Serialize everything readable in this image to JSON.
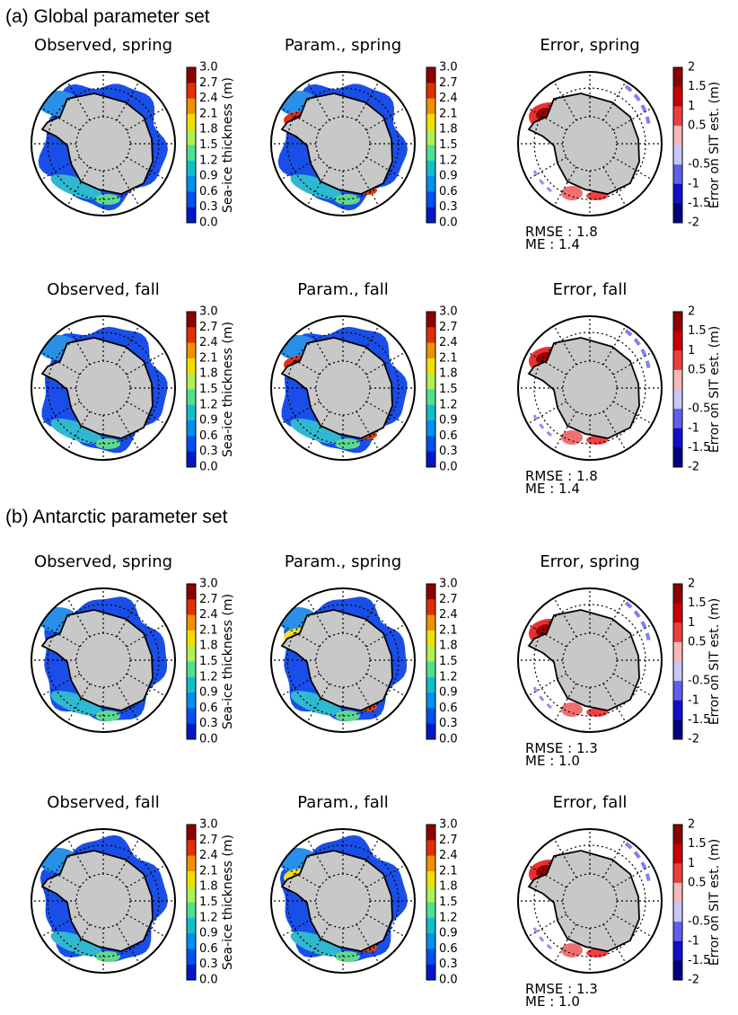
{
  "sections": [
    {
      "title": "(a) Global parameter set",
      "rows": [
        {
          "panels": [
            {
              "title": "Observed, spring",
              "colorbar_label": "Sea-ice thickness (m)"
            },
            {
              "title": "Param., spring"
            },
            {
              "title": "Error, spring",
              "colorbar_label": "Error on SIT est. (m)",
              "rmse": "RMSE : 1.8",
              "me": "ME : 1.4"
            }
          ]
        },
        {
          "panels": [
            {
              "title": "Observed, fall",
              "colorbar_label": "Sea-ice thickness (m)"
            },
            {
              "title": "Param., fall"
            },
            {
              "title": "Error, fall",
              "colorbar_label": "Error on SIT est. (m)",
              "rmse": "RMSE : 1.8",
              "me": "ME : 1.4"
            }
          ]
        }
      ]
    },
    {
      "title": "(b) Antarctic parameter set",
      "rows": [
        {
          "panels": [
            {
              "title": "Observed, spring",
              "colorbar_label": "Sea-ice thickness (m)"
            },
            {
              "title": "Param., spring"
            },
            {
              "title": "Error, spring",
              "colorbar_label": "Error on SIT est. (m)",
              "rmse": "RMSE : 1.3",
              "me": "ME : 1.0"
            }
          ]
        },
        {
          "panels": [
            {
              "title": "Observed, fall",
              "colorbar_label": "Sea-ice thickness (m)"
            },
            {
              "title": "Param., fall"
            },
            {
              "title": "Error, fall",
              "colorbar_label": "Error on SIT est. (m)",
              "rmse": "RMSE : 1.3",
              "me": "ME : 1.0"
            }
          ]
        }
      ]
    }
  ],
  "thickness_ticks": [
    "3.0",
    "2.7",
    "2.4",
    "2.1",
    "1.8",
    "1.5",
    "1.2",
    "0.9",
    "0.6",
    "0.3",
    "0.0"
  ],
  "error_ticks": [
    2,
    1.5,
    1,
    0.5,
    -0.5,
    -1,
    -1.5,
    -2
  ]
}
